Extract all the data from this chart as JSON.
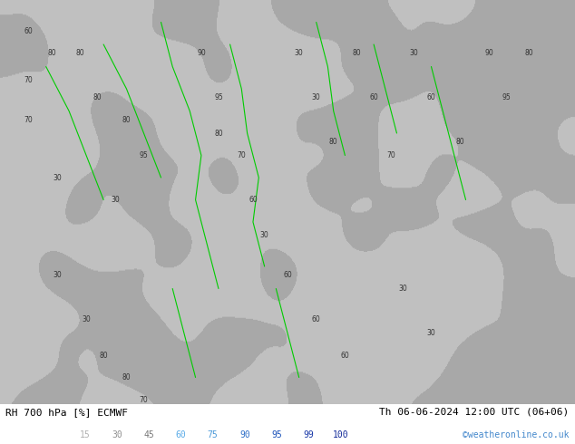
{
  "title_left": "RH 700 hPa [%] ECMWF",
  "title_right": "Th 06-06-2024 12:00 UTC (06+06)",
  "watermark": "©weatheronline.co.uk",
  "legend_values": [
    15,
    30,
    45,
    60,
    75,
    90,
    95,
    99,
    100
  ],
  "legend_colors": [
    "#d0d0d0",
    "#b0b0b0",
    "#909090",
    "#87ceeb",
    "#6ab0e0",
    "#4090d0",
    "#2060c0",
    "#0030a0",
    "#001880"
  ],
  "bg_color": "#c8c8c8",
  "figsize": [
    6.34,
    4.9
  ],
  "dpi": 100
}
